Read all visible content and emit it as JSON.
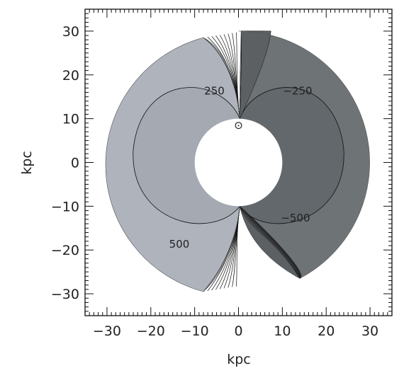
{
  "chart_data": {
    "type": "contour",
    "title": "",
    "xlabel": "kpc",
    "ylabel": "kpc",
    "xlim": [
      -35,
      35
    ],
    "ylim": [
      -35,
      35
    ],
    "xticks": [
      -30,
      -20,
      -10,
      0,
      10,
      20,
      30
    ],
    "yticks": [
      30,
      20,
      10,
      0,
      -10,
      -20,
      -30
    ],
    "xtick_labels": [
      "−30",
      "−20",
      "−10",
      "0",
      "10",
      "20",
      "30"
    ],
    "ytick_labels": [
      "30",
      "20",
      "10",
      "0",
      "−10",
      "−20",
      "−30"
    ],
    "sun_marker": {
      "symbol": "⊙",
      "x": 0,
      "y": 8.5
    },
    "inner_hole_radius": 10,
    "outer_boundary": {
      "left_arc_radius": 30,
      "right_arc_radius": 30
    },
    "contour_labels": [
      {
        "text": "250",
        "x": -5.5,
        "y": 15.5
      },
      {
        "text": "−250",
        "x": 13.5,
        "y": 15.5
      },
      {
        "text": "500",
        "x": -13.5,
        "y": -19.5
      },
      {
        "text": "−500",
        "x": 13,
        "y": -13.5
      }
    ],
    "grid": false,
    "colors": {
      "left_fill": "#aeb3bc",
      "right_fill": "#6e7376",
      "line": "#111111",
      "frame": "#111111"
    }
  }
}
